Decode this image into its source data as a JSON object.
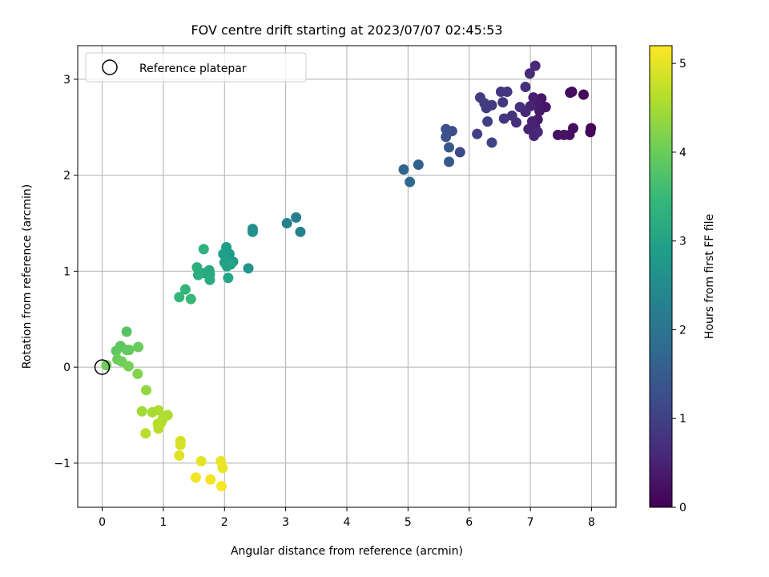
{
  "chart_data": {
    "type": "scatter",
    "title": "FOV centre drift starting at 2023/07/07 02:45:53",
    "xlabel": "Angular distance from reference (arcmin)",
    "ylabel": "Rotation from reference (arcmin)",
    "xlim": [
      -0.4,
      8.4
    ],
    "ylim": [
      -1.46,
      3.35
    ],
    "xticks": [
      0,
      1,
      2,
      3,
      4,
      5,
      6,
      7,
      8
    ],
    "yticks": [
      -1,
      0,
      1,
      2,
      3
    ],
    "xtick_labels": [
      "0",
      "1",
      "2",
      "3",
      "4",
      "5",
      "6",
      "7",
      "8"
    ],
    "ytick_labels": [
      "−1",
      "0",
      "1",
      "2",
      "3"
    ],
    "grid": true,
    "legend": {
      "placement": "top-left",
      "entries": [
        "Reference platepar"
      ]
    },
    "reference_point": {
      "name": "Reference platepar",
      "x": 0,
      "y": 0
    },
    "colorbar": {
      "label": "Hours from first FF file",
      "colormap": "viridis",
      "range": [
        0,
        5.2
      ],
      "ticks": [
        0,
        1,
        2,
        3,
        4,
        5
      ],
      "tick_labels": [
        "0",
        "1",
        "2",
        "3",
        "4",
        "5"
      ]
    },
    "colormap_stops": [
      "#440154",
      "#482878",
      "#3e4989",
      "#31688e",
      "#26828e",
      "#1f9e89",
      "#35b779",
      "#6ece58",
      "#b5de2b",
      "#fde725"
    ],
    "points": [
      {
        "x": 7.99,
        "y": 2.49,
        "h": 0.05
      },
      {
        "x": 7.98,
        "y": 2.45,
        "h": 0.08
      },
      {
        "x": 7.87,
        "y": 2.84,
        "h": 0.12
      },
      {
        "x": 7.65,
        "y": 2.86,
        "h": 0.15
      },
      {
        "x": 7.68,
        "y": 2.87,
        "h": 0.18
      },
      {
        "x": 7.7,
        "y": 2.49,
        "h": 0.2
      },
      {
        "x": 7.64,
        "y": 2.42,
        "h": 0.22
      },
      {
        "x": 7.55,
        "y": 2.42,
        "h": 0.25
      },
      {
        "x": 7.45,
        "y": 2.42,
        "h": 0.28
      },
      {
        "x": 7.25,
        "y": 2.71,
        "h": 0.3
      },
      {
        "x": 7.18,
        "y": 2.8,
        "h": 0.33
      },
      {
        "x": 7.15,
        "y": 2.67,
        "h": 0.35
      },
      {
        "x": 7.1,
        "y": 2.73,
        "h": 0.38
      },
      {
        "x": 7.12,
        "y": 2.58,
        "h": 0.4
      },
      {
        "x": 7.05,
        "y": 2.81,
        "h": 0.42
      },
      {
        "x": 7.08,
        "y": 2.5,
        "h": 0.45
      },
      {
        "x": 7.03,
        "y": 2.56,
        "h": 0.48
      },
      {
        "x": 7.0,
        "y": 2.72,
        "h": 0.5
      },
      {
        "x": 6.97,
        "y": 2.48,
        "h": 0.52
      },
      {
        "x": 7.06,
        "y": 2.41,
        "h": 0.55
      },
      {
        "x": 7.12,
        "y": 2.45,
        "h": 0.58
      },
      {
        "x": 6.92,
        "y": 2.66,
        "h": 0.6
      },
      {
        "x": 7.08,
        "y": 3.14,
        "h": 0.62
      },
      {
        "x": 6.99,
        "y": 3.06,
        "h": 0.65
      },
      {
        "x": 6.92,
        "y": 2.92,
        "h": 0.68
      },
      {
        "x": 6.83,
        "y": 2.71,
        "h": 0.7
      },
      {
        "x": 6.77,
        "y": 2.55,
        "h": 0.73
      },
      {
        "x": 6.7,
        "y": 2.62,
        "h": 0.75
      },
      {
        "x": 6.62,
        "y": 2.87,
        "h": 0.78
      },
      {
        "x": 6.57,
        "y": 2.59,
        "h": 0.8
      },
      {
        "x": 6.55,
        "y": 2.76,
        "h": 0.83
      },
      {
        "x": 6.52,
        "y": 2.87,
        "h": 0.85
      },
      {
        "x": 6.37,
        "y": 2.73,
        "h": 0.88
      },
      {
        "x": 6.28,
        "y": 2.7,
        "h": 0.9
      },
      {
        "x": 6.25,
        "y": 2.75,
        "h": 0.93
      },
      {
        "x": 6.18,
        "y": 2.81,
        "h": 0.95
      },
      {
        "x": 6.3,
        "y": 2.56,
        "h": 0.98
      },
      {
        "x": 6.13,
        "y": 2.43,
        "h": 1.0
      },
      {
        "x": 6.37,
        "y": 2.34,
        "h": 1.05
      },
      {
        "x": 5.85,
        "y": 2.24,
        "h": 1.15
      },
      {
        "x": 5.72,
        "y": 2.46,
        "h": 1.25
      },
      {
        "x": 5.62,
        "y": 2.48,
        "h": 1.3
      },
      {
        "x": 5.62,
        "y": 2.4,
        "h": 1.35
      },
      {
        "x": 5.67,
        "y": 2.29,
        "h": 1.4
      },
      {
        "x": 5.67,
        "y": 2.14,
        "h": 1.45
      },
      {
        "x": 5.17,
        "y": 2.11,
        "h": 1.6
      },
      {
        "x": 4.93,
        "y": 2.06,
        "h": 1.7
      },
      {
        "x": 5.03,
        "y": 1.93,
        "h": 1.75
      },
      {
        "x": 3.17,
        "y": 1.56,
        "h": 2.2
      },
      {
        "x": 3.02,
        "y": 1.5,
        "h": 2.25
      },
      {
        "x": 3.24,
        "y": 1.41,
        "h": 2.3
      },
      {
        "x": 2.46,
        "y": 1.44,
        "h": 2.55
      },
      {
        "x": 2.46,
        "y": 1.41,
        "h": 2.6
      },
      {
        "x": 2.39,
        "y": 1.03,
        "h": 2.7
      },
      {
        "x": 2.14,
        "y": 1.1,
        "h": 2.8
      },
      {
        "x": 2.08,
        "y": 1.18,
        "h": 2.85
      },
      {
        "x": 2.03,
        "y": 1.25,
        "h": 2.9
      },
      {
        "x": 1.98,
        "y": 1.18,
        "h": 2.9
      },
      {
        "x": 2.0,
        "y": 1.09,
        "h": 2.95
      },
      {
        "x": 2.04,
        "y": 1.05,
        "h": 2.95
      },
      {
        "x": 2.1,
        "y": 1.07,
        "h": 3.0
      },
      {
        "x": 2.06,
        "y": 0.93,
        "h": 3.05
      },
      {
        "x": 1.76,
        "y": 0.97,
        "h": 3.1
      },
      {
        "x": 1.75,
        "y": 1.01,
        "h": 3.1
      },
      {
        "x": 1.67,
        "y": 0.98,
        "h": 3.15
      },
      {
        "x": 1.76,
        "y": 0.91,
        "h": 3.2
      },
      {
        "x": 1.57,
        "y": 0.96,
        "h": 3.25
      },
      {
        "x": 1.55,
        "y": 1.04,
        "h": 3.25
      },
      {
        "x": 1.66,
        "y": 1.23,
        "h": 3.3
      },
      {
        "x": 1.36,
        "y": 0.81,
        "h": 3.4
      },
      {
        "x": 1.26,
        "y": 0.73,
        "h": 3.45
      },
      {
        "x": 1.45,
        "y": 0.71,
        "h": 3.5
      },
      {
        "x": 0.4,
        "y": 0.37,
        "h": 3.8
      },
      {
        "x": 0.3,
        "y": 0.22,
        "h": 3.85
      },
      {
        "x": 0.23,
        "y": 0.17,
        "h": 3.9
      },
      {
        "x": 0.4,
        "y": 0.18,
        "h": 3.9
      },
      {
        "x": 0.44,
        "y": 0.18,
        "h": 3.95
      },
      {
        "x": 0.59,
        "y": 0.21,
        "h": 4.0
      },
      {
        "x": 0.25,
        "y": 0.08,
        "h": 4.0
      },
      {
        "x": 0.32,
        "y": 0.06,
        "h": 4.05
      },
      {
        "x": 0.07,
        "y": 0.02,
        "h": 4.05
      },
      {
        "x": 0.43,
        "y": 0.01,
        "h": 4.1
      },
      {
        "x": 0.58,
        "y": -0.07,
        "h": 4.2
      },
      {
        "x": 0.72,
        "y": -0.24,
        "h": 4.35
      },
      {
        "x": 0.65,
        "y": -0.46,
        "h": 4.45
      },
      {
        "x": 0.82,
        "y": -0.47,
        "h": 4.5
      },
      {
        "x": 0.92,
        "y": -0.45,
        "h": 4.55
      },
      {
        "x": 1.07,
        "y": -0.5,
        "h": 4.55
      },
      {
        "x": 0.99,
        "y": -0.54,
        "h": 4.6
      },
      {
        "x": 0.96,
        "y": -0.58,
        "h": 4.6
      },
      {
        "x": 0.91,
        "y": -0.59,
        "h": 4.62
      },
      {
        "x": 0.92,
        "y": -0.64,
        "h": 4.65
      },
      {
        "x": 0.71,
        "y": -0.69,
        "h": 4.65
      },
      {
        "x": 1.28,
        "y": -0.77,
        "h": 4.85
      },
      {
        "x": 1.28,
        "y": -0.81,
        "h": 4.9
      },
      {
        "x": 1.26,
        "y": -0.92,
        "h": 4.95
      },
      {
        "x": 1.62,
        "y": -0.98,
        "h": 5.0
      },
      {
        "x": 1.94,
        "y": -0.98,
        "h": 5.05
      },
      {
        "x": 1.97,
        "y": -1.05,
        "h": 5.05
      },
      {
        "x": 1.53,
        "y": -1.15,
        "h": 5.1
      },
      {
        "x": 1.77,
        "y": -1.17,
        "h": 5.1
      },
      {
        "x": 1.95,
        "y": -1.24,
        "h": 5.15
      }
    ]
  }
}
